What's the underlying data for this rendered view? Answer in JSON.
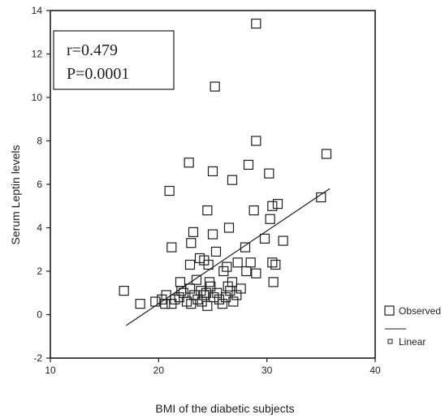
{
  "chart_data": {
    "type": "scatter",
    "title": "",
    "xlabel": "BMI of the diabetic subjects",
    "ylabel": "Serum Leptin levels",
    "xlim": [
      10,
      40
    ],
    "ylim": [
      -2,
      14
    ],
    "x_ticks": [
      "10",
      "20",
      "30",
      "40"
    ],
    "y_ticks": [
      "-2",
      "0",
      "2",
      "4",
      "6",
      "8",
      "10",
      "12",
      "14"
    ],
    "grid": false,
    "annotation": {
      "r": "r=0.479",
      "p": "P=0.0001"
    },
    "legend": {
      "placement": "bottom-right",
      "observed": "Observed",
      "linear": "Linear"
    },
    "series": [
      {
        "name": "Observed",
        "marker": "open-square",
        "points": [
          [
            29.0,
            13.4
          ],
          [
            25.2,
            10.5
          ],
          [
            29.0,
            8.0
          ],
          [
            35.5,
            7.4
          ],
          [
            28.3,
            6.9
          ],
          [
            22.8,
            7.0
          ],
          [
            25.0,
            6.6
          ],
          [
            26.8,
            6.2
          ],
          [
            30.2,
            6.5
          ],
          [
            21.0,
            5.7
          ],
          [
            30.5,
            5.0
          ],
          [
            31.0,
            5.1
          ],
          [
            35.0,
            5.4
          ],
          [
            24.5,
            4.8
          ],
          [
            28.8,
            4.8
          ],
          [
            30.3,
            4.4
          ],
          [
            26.5,
            4.0
          ],
          [
            23.2,
            3.8
          ],
          [
            25.0,
            3.7
          ],
          [
            23.0,
            3.3
          ],
          [
            29.8,
            3.5
          ],
          [
            31.5,
            3.4
          ],
          [
            21.2,
            3.1
          ],
          [
            25.3,
            2.9
          ],
          [
            28.0,
            3.1
          ],
          [
            23.8,
            2.6
          ],
          [
            24.2,
            2.5
          ],
          [
            22.9,
            2.3
          ],
          [
            24.6,
            2.3
          ],
          [
            26.3,
            2.2
          ],
          [
            27.3,
            2.4
          ],
          [
            28.5,
            2.4
          ],
          [
            30.5,
            2.4
          ],
          [
            30.8,
            2.3
          ],
          [
            26.0,
            2.0
          ],
          [
            28.1,
            2.0
          ],
          [
            29.0,
            1.9
          ],
          [
            22.0,
            1.5
          ],
          [
            23.5,
            1.6
          ],
          [
            24.7,
            1.5
          ],
          [
            26.8,
            1.5
          ],
          [
            30.6,
            1.5
          ],
          [
            16.8,
            1.1
          ],
          [
            18.3,
            0.5
          ],
          [
            19.7,
            0.6
          ],
          [
            20.3,
            0.7
          ],
          [
            20.7,
            0.9
          ],
          [
            21.2,
            0.5
          ],
          [
            21.5,
            0.7
          ],
          [
            21.9,
            0.8
          ],
          [
            22.3,
            1.0
          ],
          [
            22.6,
            0.6
          ],
          [
            22.9,
            1.2
          ],
          [
            23.3,
            0.9
          ],
          [
            23.6,
            0.7
          ],
          [
            23.9,
            1.1
          ],
          [
            24.2,
            0.9
          ],
          [
            24.5,
            0.4
          ],
          [
            24.8,
            1.3
          ],
          [
            25.1,
            0.8
          ],
          [
            25.4,
            1.0
          ],
          [
            25.9,
            0.5
          ],
          [
            26.2,
            0.8
          ],
          [
            26.6,
            1.1
          ],
          [
            26.9,
            0.6
          ],
          [
            27.2,
            0.9
          ],
          [
            27.6,
            1.2
          ],
          [
            20.6,
            0.5
          ],
          [
            23.0,
            0.5
          ],
          [
            24.0,
            0.6
          ],
          [
            25.6,
            0.7
          ],
          [
            26.4,
            1.3
          ],
          [
            22.1,
            1.1
          ],
          [
            24.4,
            1.0
          ]
        ]
      },
      {
        "name": "Linear",
        "type": "line",
        "points": [
          [
            17.0,
            -0.5
          ],
          [
            35.8,
            5.8
          ]
        ]
      }
    ]
  }
}
